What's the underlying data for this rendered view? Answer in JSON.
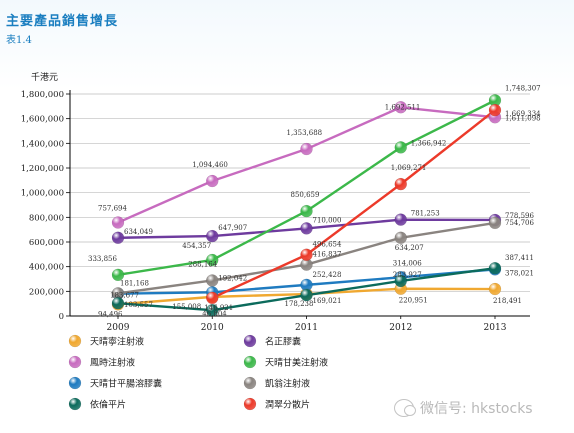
{
  "header": {
    "title": "主要產品銷售增長",
    "subtitle": "表1.4"
  },
  "watermark": "微信号: hkstocks",
  "colors": {
    "axis": "#000000",
    "grid": "#bdbdbd",
    "heading": "#1a7ec0"
  },
  "chart_data": {
    "type": "line",
    "ylabel": "千港元",
    "xlabel": "",
    "x": [
      "2009",
      "2010",
      "2011",
      "2012",
      "2013"
    ],
    "ylim": [
      0,
      1800000
    ],
    "yticks": [
      "0",
      "200,000",
      "400,000",
      "600,000",
      "800,000",
      "1,000,000",
      "1,200,000",
      "1,400,000",
      "1,600,000",
      "1,800,000"
    ],
    "grid": true,
    "legend_position": "bottom",
    "series": [
      {
        "name": "天晴寧注射液",
        "color": "#f0a830",
        "values": [
          94496,
          155008,
          178238,
          220951,
          218491
        ],
        "labels": [
          "94,496",
          "155,008",
          "178,238",
          "220,951",
          "218,491"
        ]
      },
      {
        "name": "名正膠囊",
        "color": "#6e3b9e",
        "values": [
          634049,
          647907,
          710000,
          781253,
          778596
        ],
        "labels": [
          "634,049",
          "647,907",
          "710,000",
          "781,253",
          "778,596"
        ]
      },
      {
        "name": "鳳時注射液",
        "color": "#c76bbf",
        "values": [
          757694,
          1094460,
          1353688,
          1692511,
          1611098
        ],
        "labels": [
          "757,694",
          "1,094,460",
          "1,353,688",
          "1,692,511",
          "1,611,098"
        ]
      },
      {
        "name": "天晴甘美注射液",
        "color": "#3cb84a",
        "values": [
          333856,
          454357,
          850659,
          1366942,
          1748307
        ],
        "labels": [
          "333,856",
          "454,357",
          "850,659",
          "1,366,942",
          "1,748,307"
        ]
      },
      {
        "name": "天晴甘平腸溶膠囊",
        "color": "#1f7bc0",
        "values": [
          181168,
          192042,
          252428,
          314006,
          378021
        ],
        "labels": [
          "181,168",
          "192,042",
          "252,428",
          "314,006",
          "378,021"
        ]
      },
      {
        "name": "凱翁注射液",
        "color": "#8a8480",
        "values": [
          183677,
          288164,
          416837,
          634207,
          754706
        ],
        "labels": [
          "183,677",
          "288,164",
          "416,837",
          "634,207",
          "754,706"
        ]
      },
      {
        "name": "依倫平片",
        "color": "#0c6b5c",
        "values": [
          103557,
          46804,
          169021,
          283927,
          387411
        ],
        "labels": [
          "103,557",
          "46,804",
          "169,021",
          "283,927",
          "387,411"
        ]
      },
      {
        "name": "潤翠分散片",
        "color": "#ec3a2a",
        "values": [
          null,
          146921,
          496654,
          1069271,
          1669334
        ],
        "labels": [
          "",
          "146,921",
          "496,654",
          "1,069,271",
          "1,669,334"
        ]
      }
    ]
  }
}
